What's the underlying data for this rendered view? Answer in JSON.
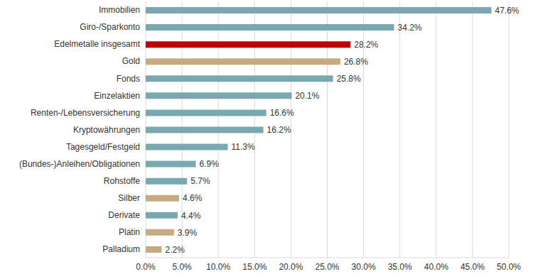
{
  "chart_data": {
    "type": "bar",
    "orientation": "horizontal",
    "categories": [
      "Immobilien",
      "Giro-/Sparkonto",
      "Edelmetalle insgesamt",
      "Gold",
      "Fonds",
      "Einzelaktien",
      "Renten-/Lebensversicherung",
      "Kryptowährungen",
      "Tagesgeld/Festgeld",
      "(Bundes-)Anleihen/Obligationen",
      "Rohstoffe",
      "Silber",
      "Derivate",
      "Platin",
      "Palladium"
    ],
    "values": [
      47.6,
      34.2,
      28.2,
      26.8,
      25.8,
      20.1,
      16.6,
      16.2,
      11.3,
      6.9,
      5.7,
      4.6,
      4.4,
      3.9,
      2.2
    ],
    "value_labels": [
      "47.6%",
      "34.2%",
      "28.2%",
      "26.8%",
      "25.8%",
      "20.1%",
      "16.6%",
      "16.2%",
      "11.3%",
      "6.9%",
      "5.7%",
      "4.6%",
      "4.4%",
      "3.9%",
      "2.2%"
    ],
    "colors": [
      "#79a8b0",
      "#79a8b0",
      "#c00000",
      "#c6aa82",
      "#79a8b0",
      "#79a8b0",
      "#79a8b0",
      "#79a8b0",
      "#79a8b0",
      "#79a8b0",
      "#79a8b0",
      "#c6aa82",
      "#79a8b0",
      "#c6aa82",
      "#c6aa82"
    ],
    "xlim": [
      0,
      50
    ],
    "xticks": [
      {
        "value": 0,
        "label": "0.0%"
      },
      {
        "value": 5,
        "label": "5.0%"
      },
      {
        "value": 10,
        "label": "10.0%"
      },
      {
        "value": 15,
        "label": "15.0%"
      },
      {
        "value": 20,
        "label": "20.0%"
      },
      {
        "value": 25,
        "label": "25.0%"
      },
      {
        "value": 30,
        "label": "30.0%"
      },
      {
        "value": 35,
        "label": "35.0%"
      },
      {
        "value": 40,
        "label": "40.0%"
      },
      {
        "value": 45,
        "label": "45.0%"
      },
      {
        "value": 50,
        "label": "50.0%"
      }
    ],
    "grid": true,
    "data_labels": true
  }
}
